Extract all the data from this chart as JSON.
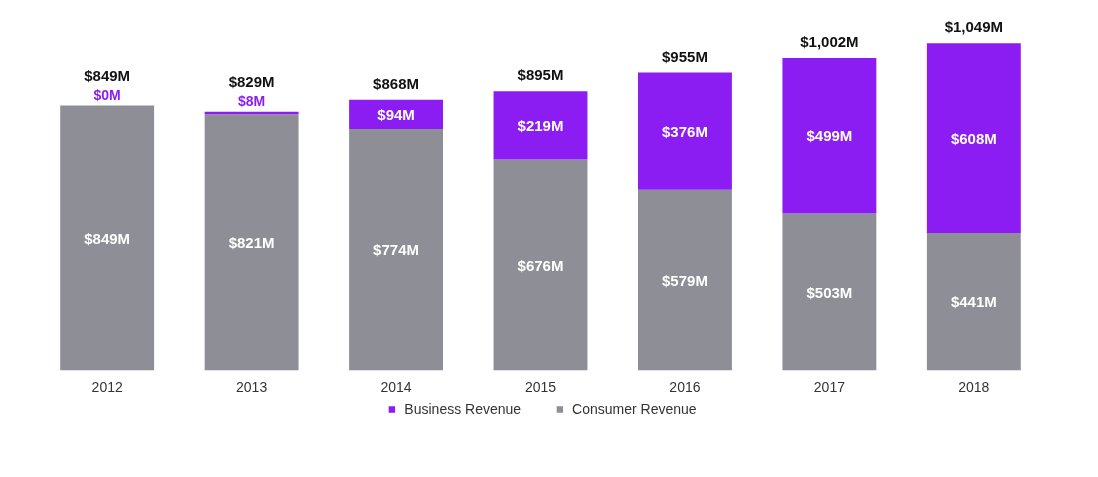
{
  "chart_data": {
    "type": "bar",
    "stacked": true,
    "categories": [
      "2012",
      "2013",
      "2014",
      "2015",
      "2016",
      "2017",
      "2018"
    ],
    "series": [
      {
        "name": "Consumer Revenue",
        "color": "#8e8e96",
        "values": [
          849,
          821,
          774,
          676,
          579,
          503,
          441
        ],
        "value_labels": [
          "$849M",
          "$821M",
          "$774M",
          "$676M",
          "$579M",
          "$503M",
          "$441M"
        ]
      },
      {
        "name": "Business Revenue",
        "color": "#8b1cf2",
        "values": [
          0,
          8,
          94,
          219,
          376,
          499,
          608
        ],
        "value_labels": [
          "$0M",
          "$8M",
          "$94M",
          "$219M",
          "$376M",
          "$499M",
          "$608M"
        ]
      }
    ],
    "totals": [
      "$849M",
      "$829M",
      "$868M",
      "$895M",
      "$955M",
      "$1,002M",
      "$1,049M"
    ],
    "legend": "bottom"
  }
}
